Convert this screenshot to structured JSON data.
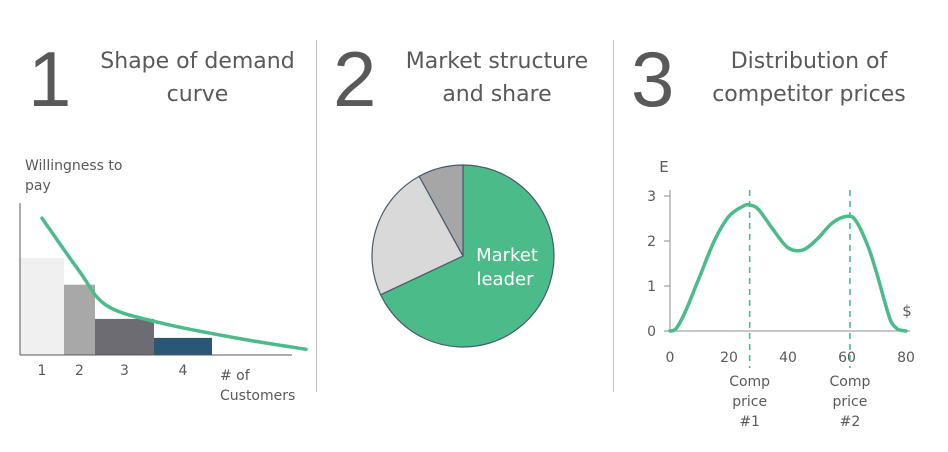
{
  "panels": [
    {
      "number": "1",
      "title_line1": "Shape of demand",
      "title_line2": "curve"
    },
    {
      "number": "2",
      "title_line1": "Market structure",
      "title_line2": "and share"
    },
    {
      "number": "3",
      "title_line1": "Distribution of",
      "title_line2": "competitor prices"
    }
  ],
  "colors": {
    "accent": "#4cbb8a",
    "bar1": "#f0f0f0",
    "bar2": "#a8a8a8",
    "bar3": "#6c6c72",
    "bar4": "#2b5776",
    "pie_light": "#d9d9d9",
    "pie_grey": "#a6a6a6"
  },
  "chart_data": [
    {
      "type": "bar",
      "ylabel_line1": "Willingness to",
      "ylabel_line2": "pay",
      "xlabel_line1": "# of",
      "xlabel_line2": "Customers",
      "categories": [
        "1",
        "2",
        "3",
        "4"
      ],
      "values": [
        5.1,
        3.7,
        1.9,
        0.9
      ],
      "ylim": [
        0,
        8
      ],
      "demand_curve": [
        [
          0.5,
          7.2
        ],
        [
          1.5,
          4.4
        ],
        [
          2.2,
          2.6
        ],
        [
          3.1,
          1.7
        ],
        [
          4.5,
          0.9
        ],
        [
          6.0,
          0.3
        ]
      ]
    },
    {
      "type": "pie",
      "slices": [
        {
          "label": "Market leader",
          "label_line1": "Market",
          "label_line2": "leader",
          "value": 68
        },
        {
          "label": "",
          "value": 24
        },
        {
          "label": "",
          "value": 8
        }
      ]
    },
    {
      "type": "line",
      "ylabel": "E",
      "xlabel": "$",
      "xlim": [
        0,
        80
      ],
      "ylim": [
        0,
        3
      ],
      "xticks": [
        "0",
        "20",
        "40",
        "60",
        "80"
      ],
      "yticks": [
        "0",
        "1",
        "2",
        "3"
      ],
      "x": [
        0,
        2,
        5,
        10,
        15,
        20,
        25,
        27,
        30,
        35,
        40,
        45,
        50,
        55,
        60,
        63,
        67,
        70,
        73,
        75,
        77,
        78,
        80
      ],
      "y": [
        0,
        0.05,
        0.4,
        1.2,
        2.0,
        2.55,
        2.78,
        2.8,
        2.7,
        2.25,
        1.85,
        1.8,
        2.05,
        2.4,
        2.55,
        2.45,
        1.9,
        1.3,
        0.6,
        0.2,
        0.05,
        0.02,
        0
      ],
      "comp_prices": [
        {
          "x": 27,
          "line1": "Comp",
          "line2": "price",
          "line3": "#1"
        },
        {
          "x": 61,
          "line1": "Comp",
          "line2": "price",
          "line3": "#2"
        }
      ]
    }
  ]
}
